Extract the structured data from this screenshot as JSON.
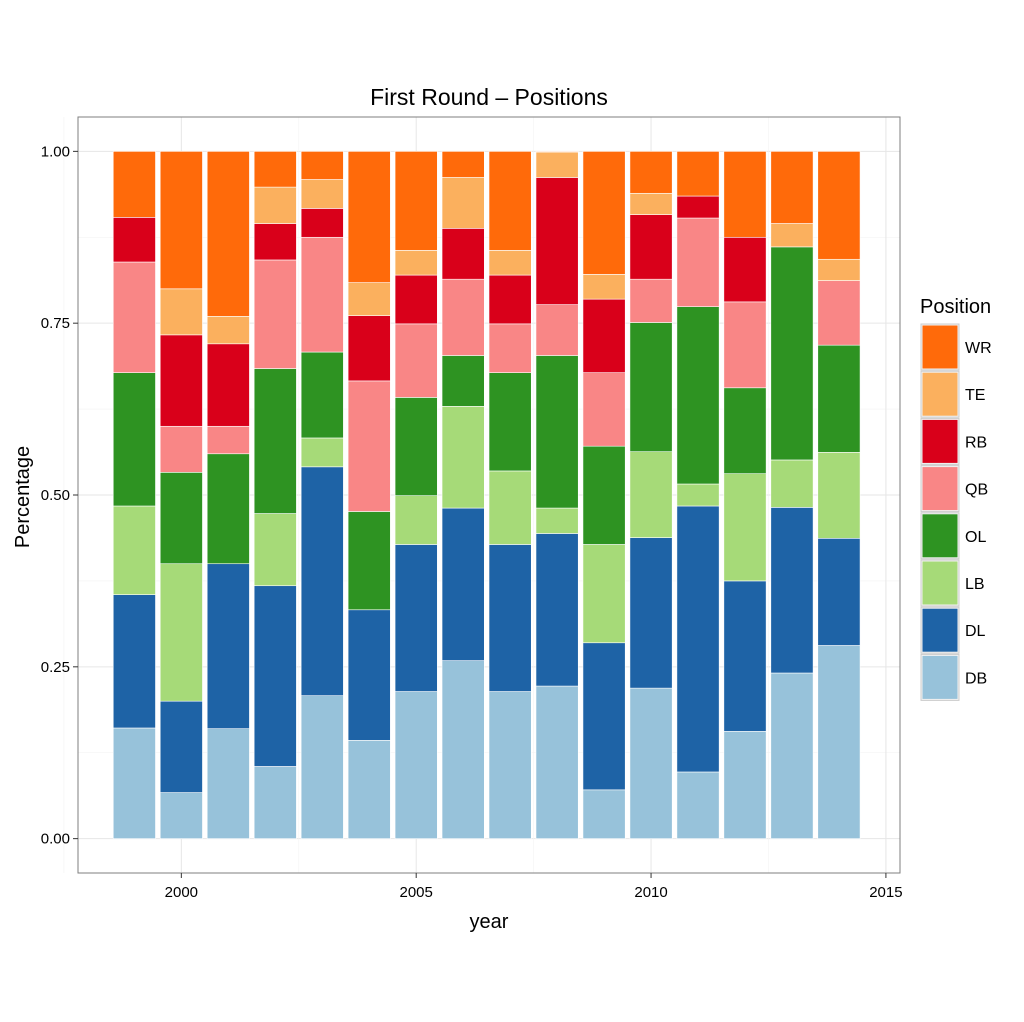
{
  "chart_data": {
    "type": "bar",
    "stacked": true,
    "title": "First Round – Positions",
    "xlabel": "year",
    "ylabel": "Percentage",
    "x": [
      1999,
      2000,
      2001,
      2002,
      2003,
      2004,
      2005,
      2006,
      2007,
      2008,
      2009,
      2010,
      2011,
      2012,
      2013,
      2014
    ],
    "xticks": [
      "2000",
      "2005",
      "2010",
      "2015"
    ],
    "yticks": [
      "0.00",
      "0.25",
      "0.50",
      "0.75",
      "1.00"
    ],
    "xlim": [
      1997.8,
      2015.3
    ],
    "ylim": [
      -0.05,
      1.05
    ],
    "grid": true,
    "legend": {
      "title": "Position",
      "placement": "right"
    },
    "series": [
      {
        "name": "DB",
        "color": "#97C2DA",
        "values": [
          0.161,
          0.067,
          0.16,
          0.105,
          0.208,
          0.143,
          0.214,
          0.259,
          0.214,
          0.222,
          0.071,
          0.219,
          0.097,
          0.156,
          0.241,
          0.281
        ]
      },
      {
        "name": "DL",
        "color": "#1E63A6",
        "values": [
          0.194,
          0.133,
          0.24,
          0.263,
          0.333,
          0.19,
          0.214,
          0.222,
          0.214,
          0.222,
          0.214,
          0.219,
          0.387,
          0.219,
          0.241,
          0.156
        ]
      },
      {
        "name": "LB",
        "color": "#A6DA78",
        "values": [
          0.129,
          0.2,
          0,
          0.105,
          0.042,
          0,
          0.071,
          0.148,
          0.107,
          0.037,
          0.143,
          0.125,
          0.032,
          0.156,
          0.069,
          0.125
        ]
      },
      {
        "name": "OL",
        "color": "#2E9322",
        "values": [
          0.194,
          0.133,
          0.16,
          0.211,
          0.125,
          0.143,
          0.143,
          0.074,
          0.143,
          0.222,
          0.143,
          0.188,
          0.258,
          0.125,
          0.31,
          0.156
        ]
      },
      {
        "name": "QB",
        "color": "#F98686",
        "values": [
          0.161,
          0.067,
          0.04,
          0.158,
          0.167,
          0.19,
          0.107,
          0.111,
          0.071,
          0.074,
          0.107,
          0.063,
          0.129,
          0.125,
          0,
          0.094
        ]
      },
      {
        "name": "RB",
        "color": "#D9001A",
        "values": [
          0.065,
          0.133,
          0.12,
          0.053,
          0.042,
          0.095,
          0.071,
          0.074,
          0.071,
          0.185,
          0.107,
          0.094,
          0.032,
          0.094,
          0,
          0
        ]
      },
      {
        "name": "TE",
        "color": "#FBB05E",
        "values": [
          0,
          0.067,
          0.04,
          0.053,
          0.042,
          0.048,
          0.036,
          0.074,
          0.036,
          0.037,
          0.036,
          0.031,
          0,
          0,
          0.034,
          0.031
        ]
      },
      {
        "name": "WR",
        "color": "#FF6A0A",
        "values": [
          0.097,
          0.2,
          0.24,
          0.053,
          0.042,
          0.19,
          0.143,
          0.037,
          0.143,
          0,
          0.179,
          0.063,
          0.065,
          0.125,
          0.103,
          0.156
        ]
      }
    ]
  }
}
